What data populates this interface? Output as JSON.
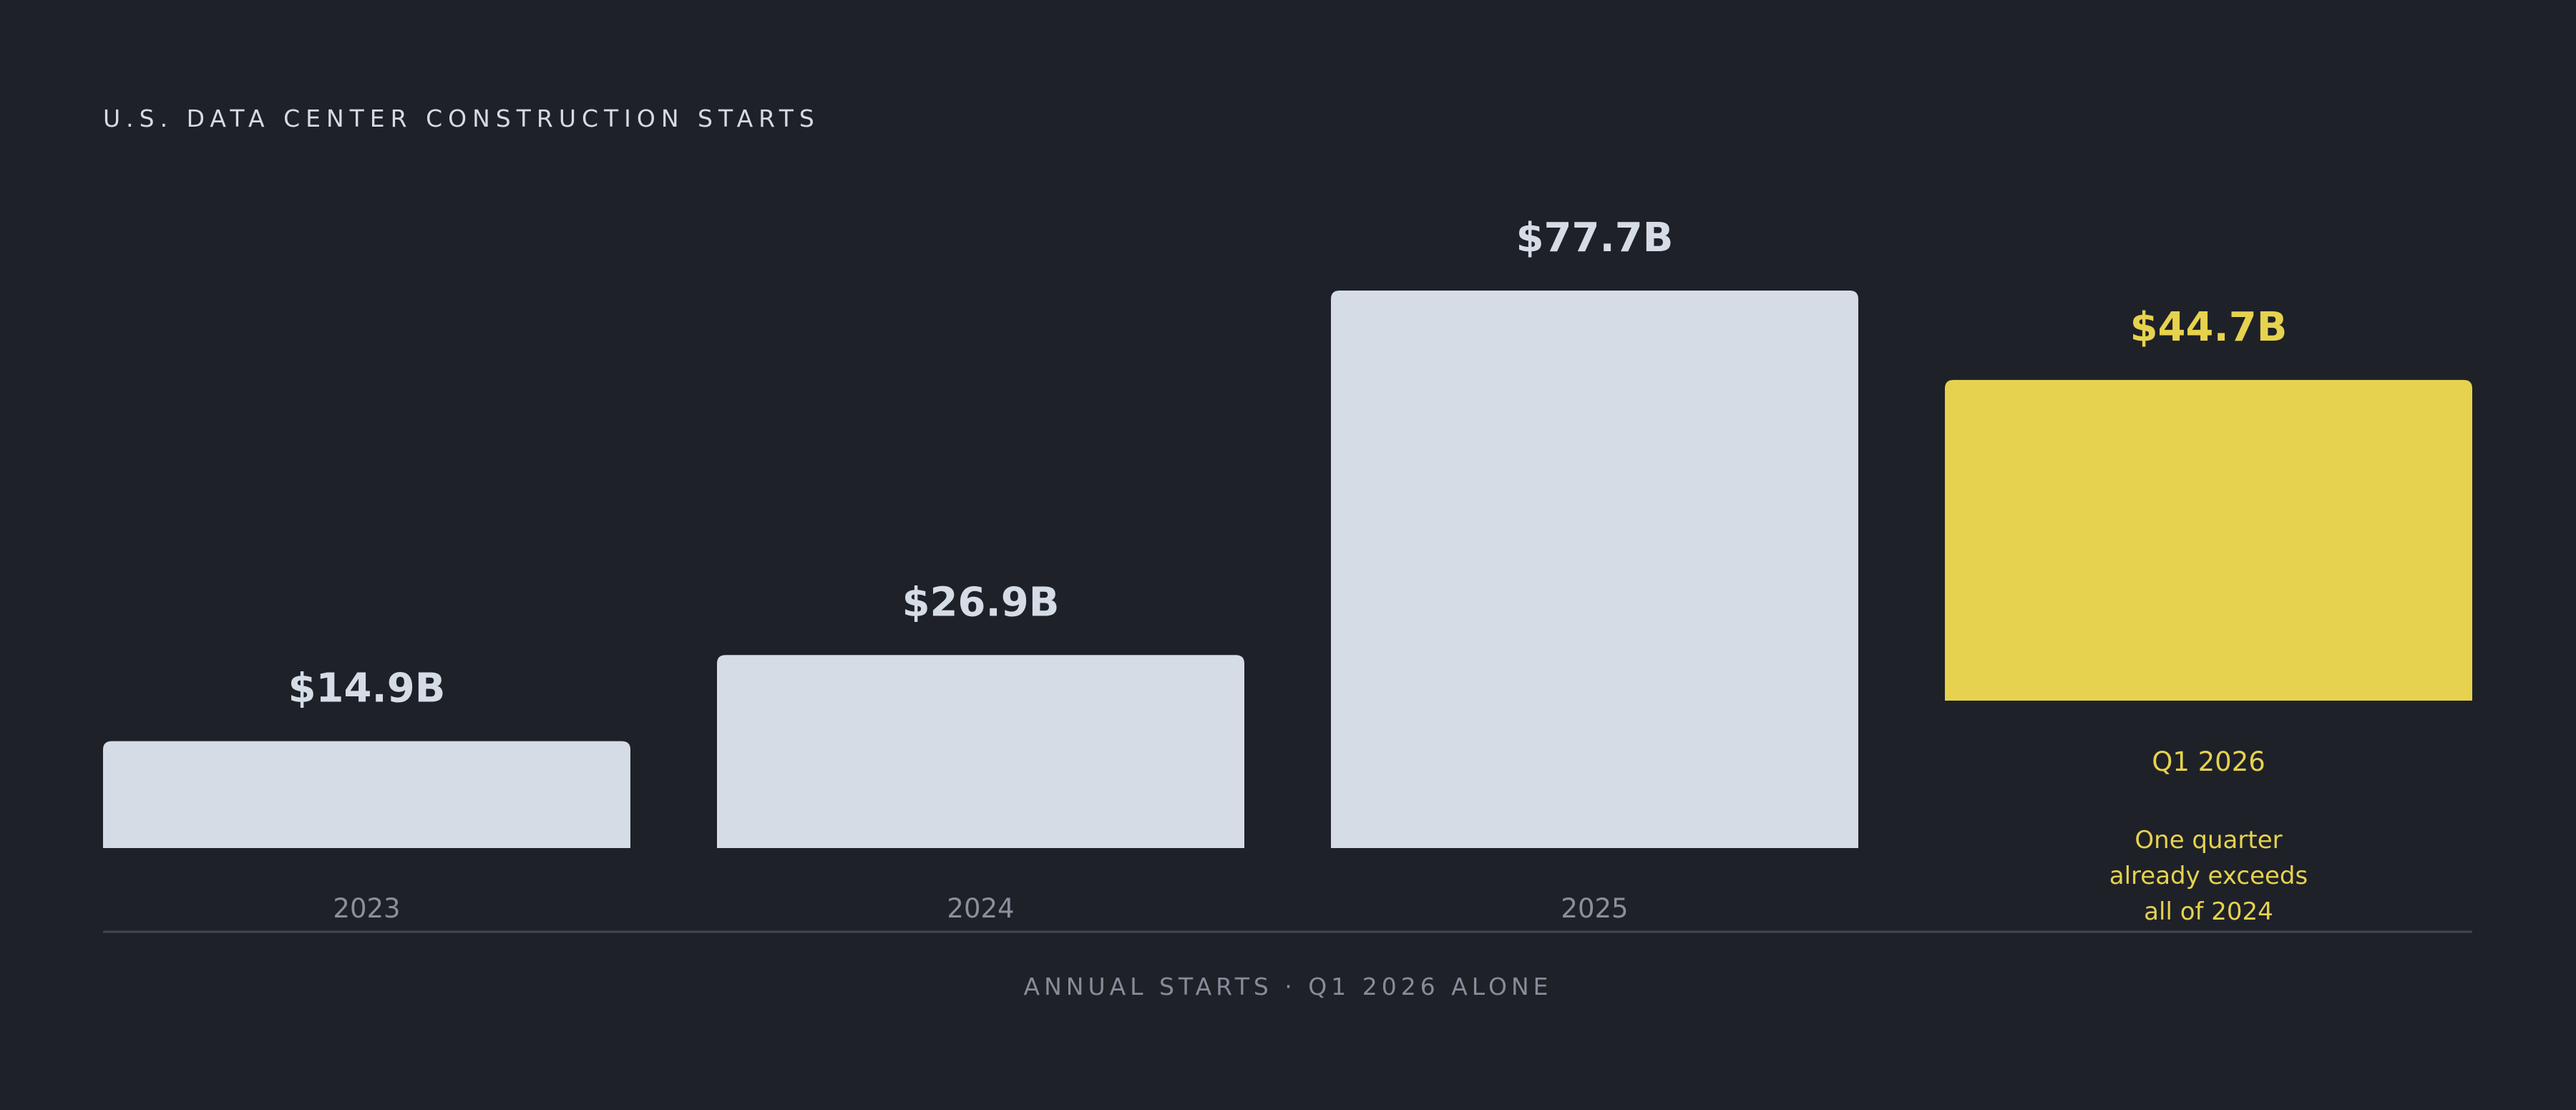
{
  "chart_data": {
    "type": "bar",
    "title": "U.S. DATA CENTER CONSTRUCTION STARTS",
    "footer": "ANNUAL STARTS · Q1 2026 ALONE",
    "categories": [
      "2023",
      "2024",
      "2025",
      "Q1 2026"
    ],
    "values": [
      14.9,
      26.9,
      77.7,
      44.7
    ],
    "value_labels": [
      "$14.9B",
      "$26.9B",
      "$77.7B",
      "$44.7B"
    ],
    "unit": "$B",
    "highlight_index": 3,
    "highlight_note": [
      "One quarter",
      "already exceeds",
      "all of 2024"
    ],
    "ylim": [
      0,
      77.7
    ],
    "grid": false,
    "colors": {
      "background": "#1e2128",
      "bar": "#d5dce6",
      "highlight": "#e6d24e",
      "value_text": "#d5dce6",
      "category_text": "#8a909b",
      "baseline": "#41464f",
      "footer_text": "#868c98",
      "title_text": "#d5dbe5"
    }
  }
}
